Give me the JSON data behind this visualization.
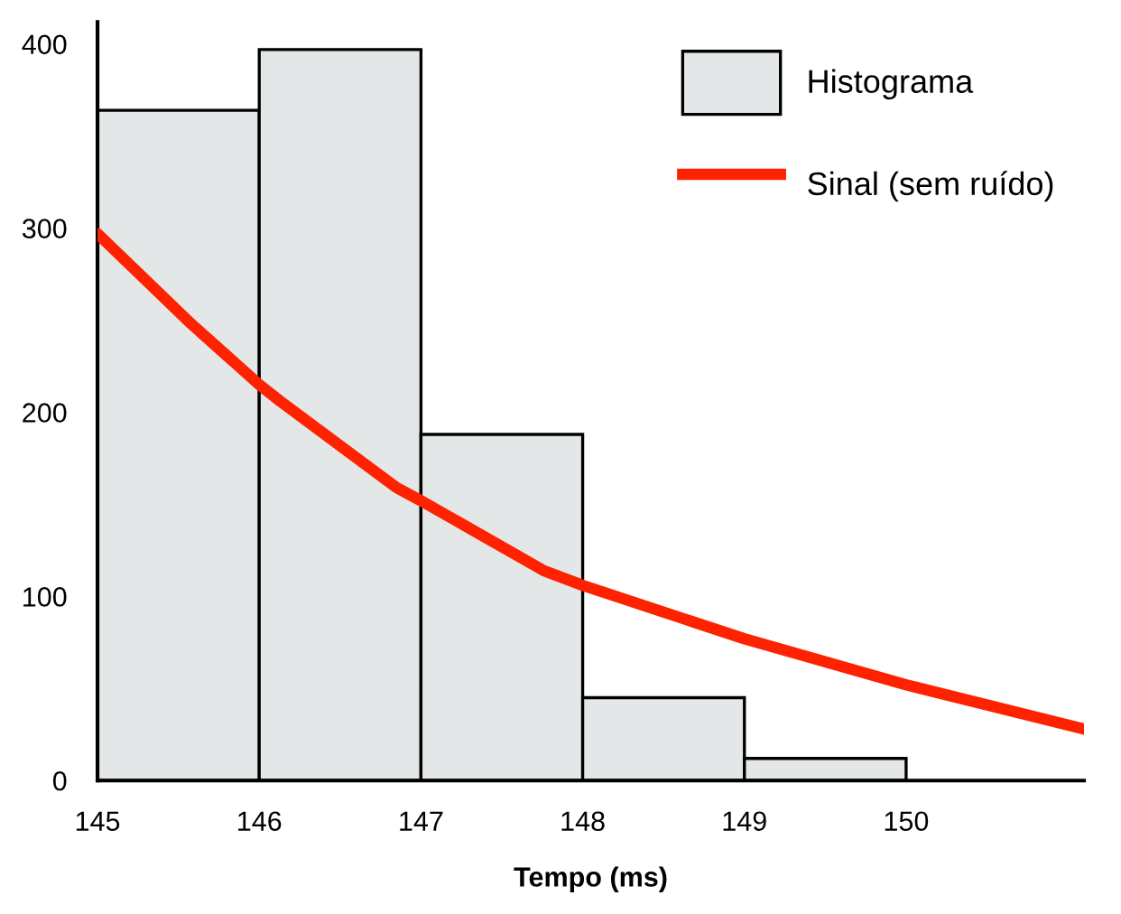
{
  "chart_data": {
    "type": "histogram",
    "xlabel": "Tempo (ms)",
    "xlim": [
      145,
      151.1
    ],
    "ylim": [
      0,
      412
    ],
    "xticks": [
      145,
      146,
      147,
      148,
      149,
      150
    ],
    "yticks": [
      0,
      100,
      200,
      300,
      400
    ],
    "legend": "top right",
    "series": [
      {
        "name": "Histograma",
        "color": "#e4e7e8",
        "bins": [
          145,
          146,
          147,
          148,
          149,
          150
        ],
        "values": [
          364,
          397,
          188,
          45,
          12
        ]
      },
      {
        "name": "Sinal (sem ruído)",
        "type": "line",
        "color": "#ff2200",
        "x": [
          145,
          145.58,
          146,
          146.13,
          146.85,
          147,
          147.76,
          148,
          149,
          150,
          151.1
        ],
        "values": [
          297,
          248,
          215,
          206,
          159,
          152,
          114,
          106,
          77,
          52,
          28
        ]
      }
    ]
  }
}
